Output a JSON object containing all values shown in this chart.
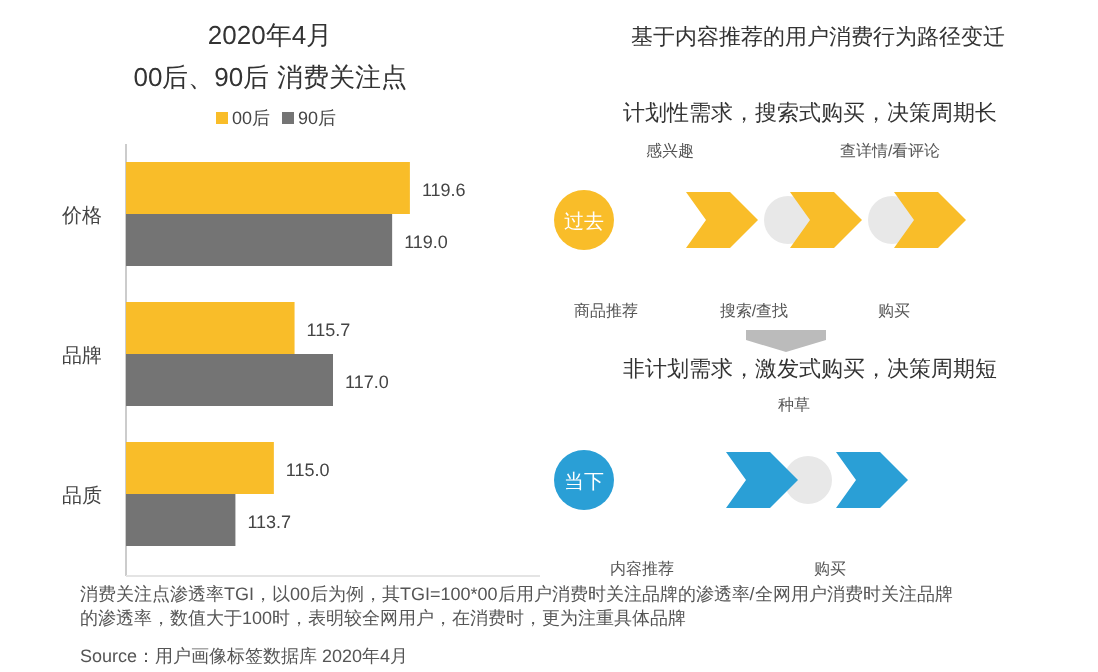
{
  "chart_data": [
    {
      "type": "bar",
      "orientation": "horizontal",
      "title": "2020年4月",
      "subtitle": "00后、90后 消费关注点",
      "categories": [
        "价格",
        "品牌",
        "品质"
      ],
      "series": [
        {
          "name": "00后",
          "color": "#f9bd29",
          "values": [
            119.6,
            115.7,
            115.0
          ],
          "value_labels": [
            "119.6",
            "115.7",
            "115.0"
          ]
        },
        {
          "name": "90后",
          "color": "#747474",
          "values": [
            119.0,
            117.0,
            113.7
          ],
          "value_labels": [
            "119.0",
            "117.0",
            "113.7"
          ]
        }
      ],
      "xlim": [
        110,
        124
      ],
      "legend": "top",
      "tick_labels": "y",
      "annotations": [
        "消费关注点渗透率TGI，以00后为例，其TGI=100*00后用户消费时关注品牌的渗透率/全网用户消费时关注品牌的渗透率，数值大于100时，表明较全网用户，在消费时，更为注重具体品牌",
        "Source：用户画像标签数据库 2020年4月"
      ]
    },
    {
      "type": "other",
      "title": "基于内容推荐的用户消费行为路径变迁",
      "annotations": [
        "计划性需求，搜索式购买，决策周期长",
        "感兴趣",
        "查详情/看评论",
        "过去",
        "商品推荐",
        "搜索/查找",
        "购买",
        "非计划需求，激发式购买，决策周期短",
        "种草",
        "当下",
        "内容推荐",
        "购买"
      ]
    }
  ]
}
